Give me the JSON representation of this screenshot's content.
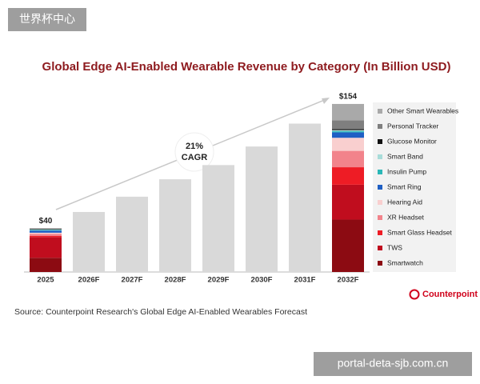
{
  "watermarks": [
    "世界杯中心",
    "portal-deta-sjb.com.cn"
  ],
  "chart_data": {
    "type": "stacked-bar",
    "title": "Global Edge AI-Enabled Wearable Revenue by Category (In Billion USD)",
    "categories": [
      "2025",
      "2026F",
      "2027F",
      "2028F",
      "2029F",
      "2030F",
      "2031F",
      "2032F"
    ],
    "values": [
      40,
      55,
      69,
      85,
      98,
      115,
      136,
      154
    ],
    "value_labels": [
      "$40",
      null,
      null,
      null,
      null,
      null,
      null,
      "$154"
    ],
    "color": "#d9d9d9",
    "series": [
      {
        "name": "Smartwatch",
        "color": "#8c0b12",
        "values": [
          13,
          null,
          null,
          null,
          null,
          null,
          null,
          48
        ]
      },
      {
        "name": "TWS",
        "color": "#c00d1e",
        "values": [
          19,
          null,
          null,
          null,
          null,
          null,
          null,
          32
        ]
      },
      {
        "name": "Smart Glass Headset",
        "color": "#ee1c25",
        "values": [
          1,
          null,
          null,
          null,
          null,
          null,
          null,
          16
        ]
      },
      {
        "name": "XR Headset",
        "color": "#f2838b",
        "values": [
          2,
          null,
          null,
          null,
          null,
          null,
          null,
          15
        ]
      },
      {
        "name": "Hearing Aid",
        "color": "#f9cfcf",
        "values": [
          1,
          null,
          null,
          null,
          null,
          null,
          null,
          12
        ]
      },
      {
        "name": "Smart Ring",
        "color": "#1f5fc4",
        "values": [
          2,
          null,
          null,
          null,
          null,
          null,
          null,
          5
        ]
      },
      {
        "name": "Insulin Pump",
        "color": "#2ab7b7",
        "values": [
          0.5,
          null,
          null,
          null,
          null,
          null,
          null,
          1
        ]
      },
      {
        "name": "Smart Band",
        "color": "#a8dcd9",
        "values": [
          0.5,
          null,
          null,
          null,
          null,
          null,
          null,
          1
        ]
      },
      {
        "name": "Glucose Monitor",
        "color": "#111111",
        "values": [
          0.5,
          null,
          null,
          null,
          null,
          null,
          null,
          1
        ]
      },
      {
        "name": "Personal Tracker",
        "color": "#7f7f7f",
        "values": [
          0.5,
          null,
          null,
          null,
          null,
          null,
          null,
          8
        ]
      },
      {
        "name": "Other Smart Wearables",
        "color": "#a9a9a9",
        "values": [
          0,
          null,
          null,
          null,
          null,
          null,
          null,
          15
        ]
      }
    ],
    "annotation": [
      "21%",
      "CAGR"
    ],
    "source": "Source: Counterpoint Research's Global Edge AI-Enabled Wearables Forecast",
    "logo": "Counterpoint"
  }
}
